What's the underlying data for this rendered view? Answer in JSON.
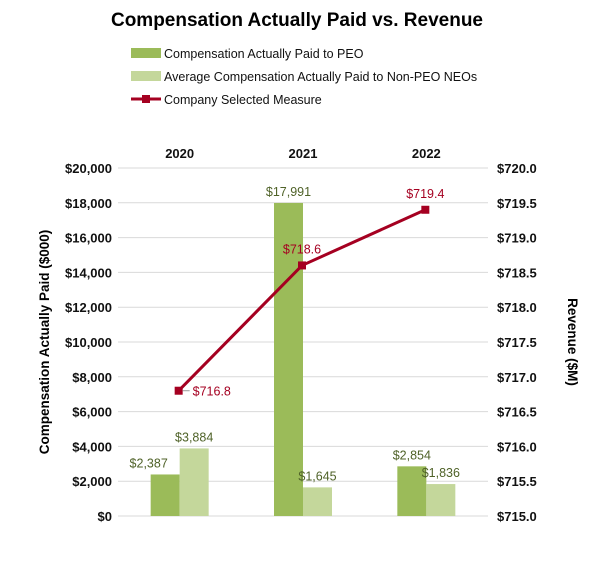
{
  "chart_data": {
    "type": "bar",
    "title": "Compensation Actually Paid vs. Revenue",
    "categories": [
      "2020",
      "2021",
      "2022"
    ],
    "ylabel": "Compensation Actually Paid ($000)",
    "y2label": "Revenue ($M)",
    "ylim": [
      0,
      20000
    ],
    "y2lim": [
      715.0,
      720.0
    ],
    "yticks": [
      "$0",
      "$2,000",
      "$4,000",
      "$6,000",
      "$8,000",
      "$10,000",
      "$12,000",
      "$14,000",
      "$16,000",
      "$18,000",
      "$20,000"
    ],
    "y2ticks": [
      "$715.0",
      "$715.5",
      "$716.0",
      "$716.5",
      "$717.0",
      "$717.5",
      "$718.0",
      "$718.5",
      "$719.0",
      "$719.5",
      "$720.0"
    ],
    "grid": true,
    "legend_placement": "top",
    "series": [
      {
        "name": "Compensation Actually Paid to PEO",
        "type": "bar",
        "axis": "left",
        "color": "#9bbb59",
        "values": [
          2387,
          17991,
          2854
        ],
        "labels": [
          "$2,387",
          "$17,991",
          "$2,854"
        ]
      },
      {
        "name": "Average Compensation Actually Paid to Non-PEO NEOs",
        "type": "bar",
        "axis": "left",
        "color": "#c4d79b",
        "values": [
          3884,
          1645,
          1836
        ],
        "labels": [
          "$3,884",
          "$1,645",
          "$1,836"
        ]
      },
      {
        "name": "Company Selected Measure",
        "type": "line",
        "axis": "right",
        "color": "#a50021",
        "values": [
          716.8,
          718.6,
          719.4
        ],
        "labels": [
          "$716.8",
          "$718.6",
          "$719.4"
        ]
      }
    ]
  }
}
